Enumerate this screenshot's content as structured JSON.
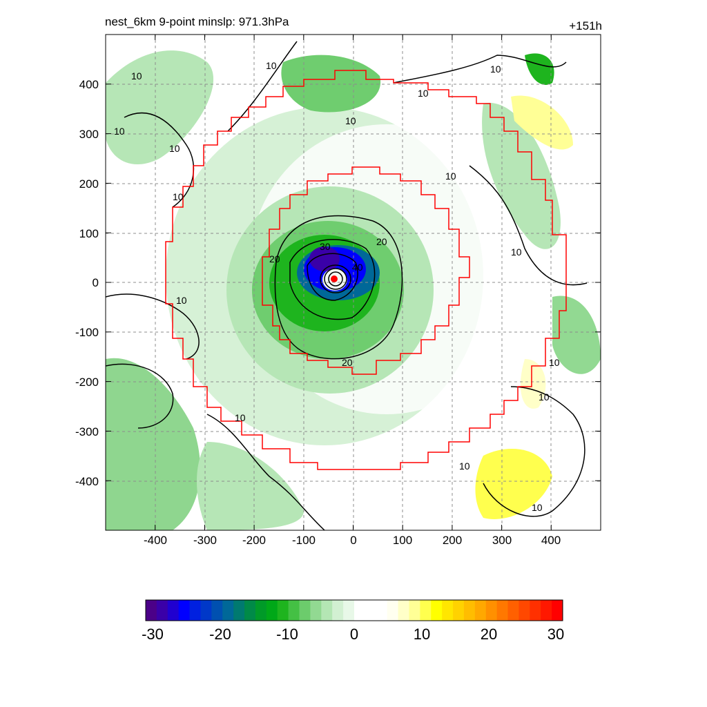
{
  "header": {
    "title": "nest_6km  9-point minslp: 971.3hPa",
    "lead_time": "+151h"
  },
  "axes": {
    "x_ticks": [
      -400,
      -300,
      -200,
      -100,
      0,
      100,
      200,
      300,
      400
    ],
    "y_ticks": [
      400,
      300,
      200,
      100,
      0,
      -100,
      -200,
      -300,
      -400
    ],
    "xlim": [
      -500,
      500
    ],
    "ylim": [
      -500,
      500
    ],
    "grid": "dashed"
  },
  "colorbar": {
    "ticks": [
      "-30",
      "-20",
      "-10",
      "0",
      "10",
      "20",
      "30"
    ],
    "range": [
      -30,
      30
    ],
    "colors": [
      "#4b0088",
      "#3a00a8",
      "#2000d0",
      "#0000ff",
      "#0020e0",
      "#0038c8",
      "#0050b0",
      "#006898",
      "#007a70",
      "#008a48",
      "#009a28",
      "#00a818",
      "#1eb41e",
      "#44c044",
      "#6ccc6c",
      "#92d992",
      "#b4e6b4",
      "#d2f0d2",
      "#e8f8e8",
      "#ffffff",
      "#ffffff",
      "#ffffff",
      "#fffff0",
      "#ffffc8",
      "#ffff96",
      "#ffff4e",
      "#ffff00",
      "#ffe600",
      "#ffd200",
      "#ffbd00",
      "#ffa800",
      "#ff9000",
      "#ff7800",
      "#ff6000",
      "#ff4800",
      "#ff3000",
      "#ff1800",
      "#ff0000"
    ]
  },
  "contour_labels": [
    "10",
    "10",
    "10",
    "10",
    "10",
    "10",
    "10",
    "10",
    "10",
    "10",
    "10",
    "10",
    "10",
    "10",
    "10",
    "10",
    "20",
    "20",
    "20",
    "30",
    "40"
  ],
  "colors": {
    "boundary": "#ff0000",
    "contour": "#000000",
    "grid": "#8c8c8c"
  }
}
